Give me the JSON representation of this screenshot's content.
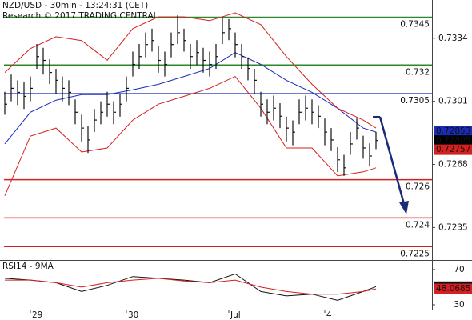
{
  "chart_data": {
    "type": "ohlc",
    "title": "NZD/USD - 30min - 13:24:31 (CET)",
    "subtitle": "Research © 2017 TRADING CENTRAL",
    "color": "#111111",
    "high": [
      0.7306,
      0.7315,
      0.7312,
      0.7311,
      0.7314,
      0.7331,
      0.7329,
      0.7323,
      0.7318,
      0.7314,
      0.7312,
      0.7302,
      0.7294,
      0.7288,
      0.7297,
      0.7301,
      0.7306,
      0.7301,
      0.7305,
      0.7314,
      0.7327,
      0.7331,
      0.7337,
      0.7339,
      0.733,
      0.7327,
      0.7337,
      0.7346,
      0.7339,
      0.7331,
      0.7333,
      0.7329,
      0.7327,
      0.7331,
      0.7345,
      0.7344,
      0.7337,
      0.7331,
      0.7324,
      0.7318,
      0.7306,
      0.7302,
      0.7304,
      0.73,
      0.7293,
      0.7291,
      0.7302,
      0.7304,
      0.7302,
      0.7299,
      0.7292,
      0.7287,
      0.7277,
      0.7273,
      0.7285,
      0.7292,
      0.7283,
      0.7279,
      0.7285
    ],
    "low": [
      0.7294,
      0.7301,
      0.7299,
      0.7297,
      0.7301,
      0.7318,
      0.7315,
      0.731,
      0.7305,
      0.7301,
      0.7299,
      0.7289,
      0.728,
      0.7274,
      0.7285,
      0.7289,
      0.7293,
      0.7289,
      0.7293,
      0.7301,
      0.7314,
      0.7318,
      0.7324,
      0.7327,
      0.7316,
      0.7314,
      0.7324,
      0.7331,
      0.7327,
      0.7318,
      0.732,
      0.7316,
      0.7314,
      0.7318,
      0.7331,
      0.7333,
      0.7324,
      0.7318,
      0.7312,
      0.7305,
      0.7293,
      0.7289,
      0.7291,
      0.7287,
      0.728,
      0.7278,
      0.7289,
      0.7291,
      0.7289,
      0.7287,
      0.7278,
      0.7275,
      0.7264,
      0.7262,
      0.7273,
      0.7281,
      0.7271,
      0.7267,
      0.7276
    ],
    "close": [
      0.72995,
      0.73078,
      0.73057,
      0.73036,
      0.73078,
      0.73244,
      0.73224,
      0.73161,
      0.7312,
      0.73078,
      0.73057,
      0.72953,
      0.7287,
      0.72808,
      0.72912,
      0.72953,
      0.72995,
      0.72953,
      0.72995,
      0.73078,
      0.73203,
      0.73244,
      0.73307,
      0.73328,
      0.73224,
      0.73203,
      0.73307,
      0.73369,
      0.73328,
      0.73244,
      0.73265,
      0.73224,
      0.73203,
      0.73244,
      0.73369,
      0.7339,
      0.73307,
      0.73244,
      0.73182,
      0.7312,
      0.72995,
      0.72953,
      0.72974,
      0.72932,
      0.7287,
      0.72849,
      0.72953,
      0.72974,
      0.72953,
      0.72932,
      0.72849,
      0.72808,
      0.72704,
      0.72662,
      0.72787,
      0.7287,
      0.72766,
      0.72724,
      0.72805
    ],
    "overlays": [
      {
        "color": "#1a2bb8",
        "x": [
          0,
          4,
          8,
          12,
          16,
          20,
          24,
          28,
          32,
          36,
          40,
          44,
          48,
          52,
          56,
          58
        ],
        "values": [
          0.72787,
          0.72953,
          0.73016,
          0.73045,
          0.73045,
          0.7307,
          0.73099,
          0.7314,
          0.73182,
          0.73265,
          0.73203,
          0.7312,
          0.73057,
          0.72974,
          0.7287,
          0.72849
        ]
      },
      {
        "color": "#d42020",
        "x": [
          0,
          4,
          8,
          12,
          16,
          20,
          24,
          28,
          32,
          36,
          40,
          44,
          48,
          52,
          56,
          58
        ],
        "values": [
          0.73161,
          0.73286,
          0.73348,
          0.73328,
          0.73225,
          0.7339,
          0.73452,
          0.73452,
          0.73432,
          0.73473,
          0.73411,
          0.73244,
          0.73099,
          0.72974,
          0.72912,
          0.7287
        ]
      },
      {
        "color": "#d42020",
        "x": [
          0,
          4,
          8,
          12,
          16,
          20,
          24,
          28,
          32,
          36,
          40,
          44,
          48,
          52,
          56,
          58
        ],
        "values": [
          0.72516,
          0.72828,
          0.7287,
          0.72745,
          0.72766,
          0.72912,
          0.72995,
          0.73036,
          0.73078,
          0.7314,
          0.72974,
          0.72766,
          0.72766,
          0.7262,
          0.72641,
          0.72662
        ]
      }
    ],
    "levels": [
      {
        "value": 0.7345,
        "color": "#2a8a2a"
      },
      {
        "value": 0.732,
        "color": "#2a8a2a"
      },
      {
        "value": 0.7305,
        "color": "#1a2bb8"
      },
      {
        "value": 0.726,
        "color": "#d42020"
      },
      {
        "value": 0.724,
        "color": "#d42020"
      },
      {
        "value": 0.7225,
        "color": "#d42020"
      }
    ],
    "tags": [
      {
        "value": 0.72853,
        "color": "#1a2bb8"
      },
      {
        "value": 0.72805,
        "color": "#000000"
      },
      {
        "value": 0.72757,
        "color": "#d42020"
      }
    ],
    "xlim": [
      -0.75,
      66.75
    ],
    "ylim": [
      0.7218,
      0.7354
    ],
    "yticks": [
      0.7334,
      0.7301,
      0.7268,
      0.7235
    ],
    "xticks": [
      {
        "value": 4,
        "label": "29"
      },
      {
        "value": 19,
        "label": "30"
      },
      {
        "value": 35,
        "label": "Jul"
      },
      {
        "value": 50,
        "label": "4"
      }
    ],
    "indicator": {
      "title": "RSI14 - 9MA",
      "ylim": [
        24.5,
        79
      ],
      "yticks": [
        70,
        30
      ],
      "x": [
        0,
        4,
        8,
        12,
        16,
        20,
        24,
        28,
        32,
        36,
        40,
        44,
        48,
        52,
        56,
        58
      ],
      "series": [
        {
          "color": "#111111",
          "values": [
            60,
            58,
            55,
            45,
            52,
            62,
            60,
            58,
            55,
            65,
            45,
            40,
            42,
            35,
            45,
            50.5697
          ]
        },
        {
          "color": "#d42020",
          "values": [
            58,
            58,
            55,
            50,
            55,
            58,
            60,
            57,
            55,
            58,
            50,
            45,
            42,
            42,
            45,
            48.0685
          ]
        }
      ]
    }
  }
}
